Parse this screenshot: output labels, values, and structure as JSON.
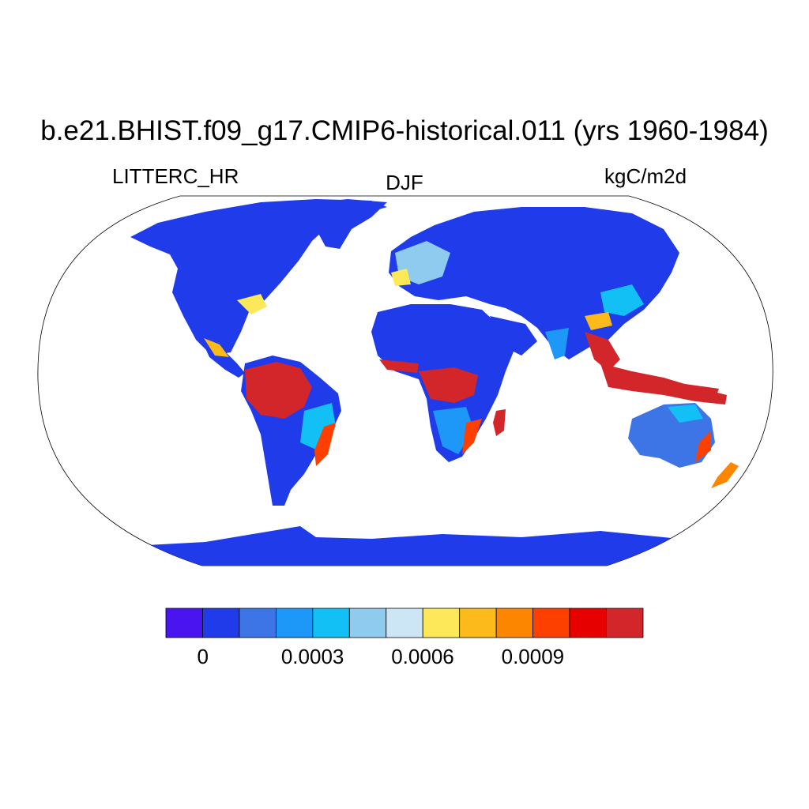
{
  "title": "b.e21.BHIST.f09_g17.CMIP6-historical.011 (yrs 1960-1984)",
  "left_label": "LITTERC_HR",
  "center_label": "DJF",
  "right_label": "kgC/m2d",
  "colorbar": {
    "colors": [
      "#4a14f0",
      "#1f3bea",
      "#3d74e6",
      "#1e98f8",
      "#12c0f5",
      "#8ecbee",
      "#cde6f6",
      "#fde85a",
      "#fdbb1b",
      "#fd8600",
      "#fd3f00",
      "#e60000",
      "#d2262b"
    ],
    "tick_labels": [
      "0",
      "0.0003",
      "0.0006",
      "0.0009"
    ]
  }
}
